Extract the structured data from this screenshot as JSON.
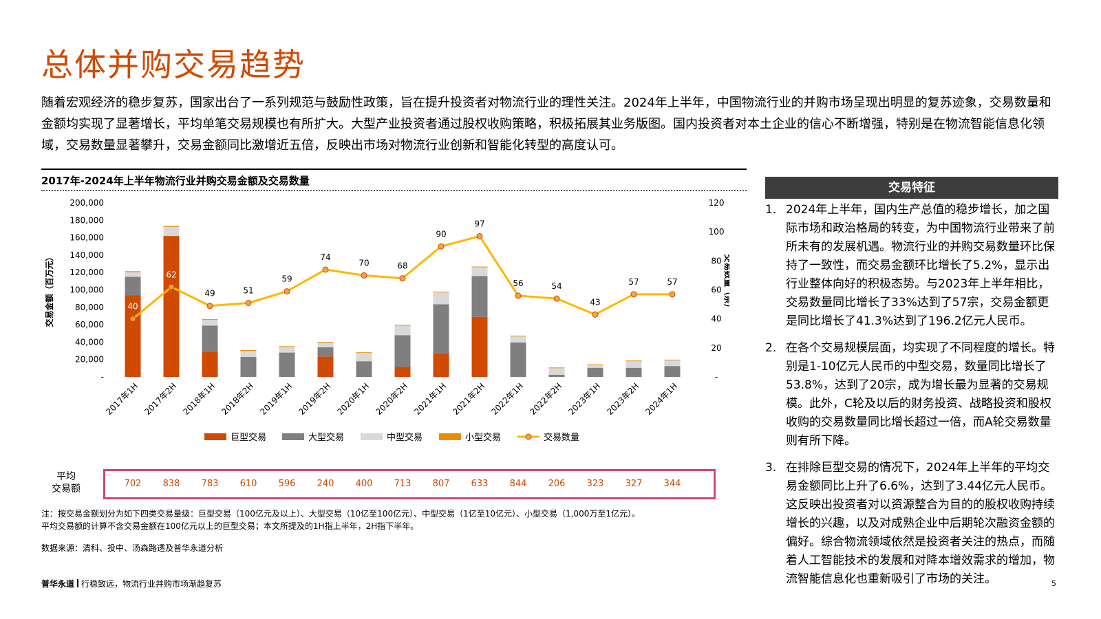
{
  "page": {
    "title": "总体并购交易趋势",
    "intro": "随着宏观经济的稳步复苏，国家出台了一系列规范与鼓励性政策，旨在提升投资者对物流行业的理性关注。2024年上半年，中国物流行业的并购市场呈现出明显的复苏迹象，交易数量和金额均实现了显著增长，平均单笔交易规模也有所扩大。大型产业投资者通过股权收购策略，积极拓展其业务版图。国内投资者对本土企业的信心不断增强，特别是在物流智能信息化领域，交易数量显著攀升，交易金额同比激增近五倍，反映出市场对物流行业创新和智能化转型的高度认可。",
    "chart_title": "2017年-2024年上半年物流行业并购交易金额及交易数量",
    "avg_label_1": "平均",
    "avg_label_2": "交易额",
    "note_1": "注：按交易金额划分为如下四类交易量级：巨型交易（100亿元及以上）、大型交易（10亿至100亿元）、中型交易（1亿至10亿元）、小型交易（1,000万至1亿元）。",
    "note_2": "平均交易额的计算不含交易金额在100亿元以上的巨型交易；本文所提及的1H指上半年，2H指下半年。",
    "source": "数据来源：清科、投中、汤森路透及普华永道分析",
    "footer_brand": "普华永道",
    "footer_text": "行稳致远，物流行业并购市场渐趋复苏",
    "page_number": "5"
  },
  "sidebar": {
    "heading": "交易特征",
    "items": [
      {
        "num": "1.",
        "text": "2024年上半年，国内生产总值的稳步增长，加之国际市场和政治格局的转变，为中国物流行业带来了前所未有的发展机遇。物流行业的并购交易数量环比保持了一致性，而交易金额环比增长了5.2%，显示出行业整体向好的积极态势。与2023年上半年相比，交易数量同比增长了33%达到了57宗，交易金额更是同比增长了41.3%达到了196.2亿元人民币。"
      },
      {
        "num": "2.",
        "text": "在各个交易规模层面，均实现了不同程度的增长。特别是1-10亿元人民币的中型交易，数量同比增长了53.8%，达到了20宗，成为增长最为显著的交易规模。此外，C轮及以后的财务投资、战略投资和股权收购的交易数量同比增长超过一倍，而A轮交易数量则有所下降。"
      },
      {
        "num": "3.",
        "text": "在排除巨型交易的情况下，2024年上半年的平均交易金额同比上升了6.6%，达到了3.44亿元人民币。这反映出投资者对以资源整合为目的的股权收购持续增长的兴趣，以及对成熟企业中后期轮次融资金额的偏好。综合物流领域依然是投资者关注的热点，而随着人工智能技术的发展和对降本增效需求的增加，物流智能信息化也重新吸引了市场的关注。"
      }
    ]
  },
  "chart_data": {
    "type": "bar",
    "stacked": true,
    "title": "2017年-2024年上半年物流行业并购交易金额及交易数量",
    "categories": [
      "2017年1H",
      "2017年2H",
      "2018年1H",
      "2018年2H",
      "2019年1H",
      "2019年2H",
      "2020年1H",
      "2020年2H",
      "2021年1H",
      "2021年2H",
      "2022年1H",
      "2022年2H",
      "2023年1H",
      "2023年2H",
      "2024年1H"
    ],
    "ylabel": "交易金额（百万元）",
    "y2label": "交易数量（宗）",
    "ylim": [
      0,
      200000
    ],
    "y2lim": [
      0,
      120
    ],
    "yticks": [
      "-",
      "20,000",
      "40,000",
      "60,000",
      "80,000",
      "100,000",
      "120,000",
      "140,000",
      "160,000",
      "180,000",
      "200,000"
    ],
    "y2ticks": [
      "-",
      "20",
      "40",
      "60",
      "80",
      "100",
      "120"
    ],
    "series": [
      {
        "name": "巨型交易",
        "color": "#d04a02",
        "values": [
          94000,
          162000,
          29000,
          0,
          0,
          23500,
          0,
          11500,
          26500,
          69000,
          0,
          0,
          0,
          0,
          0
        ]
      },
      {
        "name": "大型交易",
        "color": "#7f7f7f",
        "values": [
          21000,
          0,
          30000,
          23000,
          28000,
          10500,
          18000,
          36500,
          57000,
          47000,
          39500,
          2500,
          10500,
          10500,
          12500
        ]
      },
      {
        "name": "中型交易",
        "color": "#d9d9d9",
        "values": [
          5500,
          10500,
          6500,
          7000,
          6500,
          5500,
          9500,
          11000,
          13500,
          10000,
          7000,
          7500,
          3000,
          7500,
          6500
        ]
      },
      {
        "name": "小型交易",
        "color": "#eb8c00",
        "values": [
          1000,
          1000,
          800,
          800,
          800,
          800,
          800,
          800,
          800,
          800,
          800,
          800,
          800,
          800,
          800
        ]
      },
      {
        "name": "交易数量",
        "color": "#ffb600",
        "type": "line",
        "axis": "right",
        "values": [
          40,
          62,
          49,
          51,
          59,
          74,
          70,
          68,
          90,
          97,
          56,
          54,
          43,
          57,
          57
        ]
      }
    ],
    "avg_deal_values": [
      "702",
      "838",
      "783",
      "610",
      "596",
      "240",
      "400",
      "713",
      "807",
      "633",
      "844",
      "206",
      "323",
      "327",
      "344"
    ],
    "legend": "bottom"
  }
}
